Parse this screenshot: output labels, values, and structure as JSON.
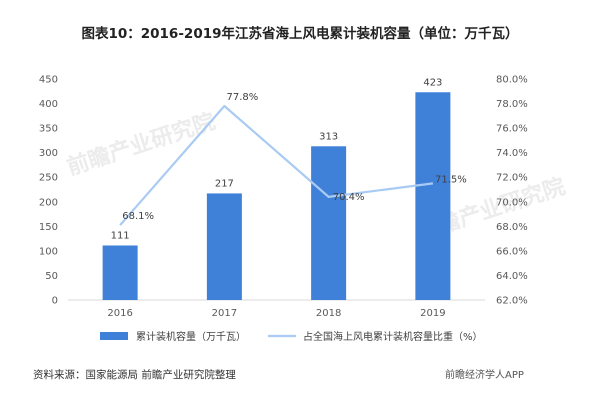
{
  "chart_data": {
    "type": "bar",
    "title": "图表10：2016-2019年江苏省海上风电累计装机容量（单位：万千瓦）",
    "categories": [
      "2016",
      "2017",
      "2018",
      "2019"
    ],
    "series": [
      {
        "name": "累计装机容量（万千瓦）",
        "type": "bar",
        "axis": "left",
        "values": [
          111,
          217,
          313,
          423
        ],
        "color": "#3F80D8"
      },
      {
        "name": "占全国海上风电累计装机容量比重（%）",
        "type": "line",
        "axis": "right",
        "values": [
          68.1,
          77.8,
          70.4,
          71.5
        ],
        "color": "#A9CBF3"
      }
    ],
    "y_left": {
      "min": 0,
      "max": 450,
      "step": 50,
      "ticks": [
        "0",
        "50",
        "100",
        "150",
        "200",
        "250",
        "300",
        "350",
        "400",
        "450"
      ]
    },
    "y_right": {
      "min": 62.0,
      "max": 80.0,
      "step": 2.0,
      "ticks": [
        "62.0%",
        "64.0%",
        "66.0%",
        "68.0%",
        "70.0%",
        "72.0%",
        "74.0%",
        "76.0%",
        "78.0%",
        "80.0%"
      ]
    },
    "bar_labels": [
      "111",
      "217",
      "313",
      "423"
    ],
    "line_labels": [
      "68.1%",
      "77.8%",
      "70.4%",
      "71.5%"
    ],
    "legend_position": "bottom",
    "grid": false
  },
  "source": "资料来源：国家能源局 前瞻产业研究院整理",
  "brand": "前瞻经济学人APP",
  "watermark": "前瞻产业研究院"
}
